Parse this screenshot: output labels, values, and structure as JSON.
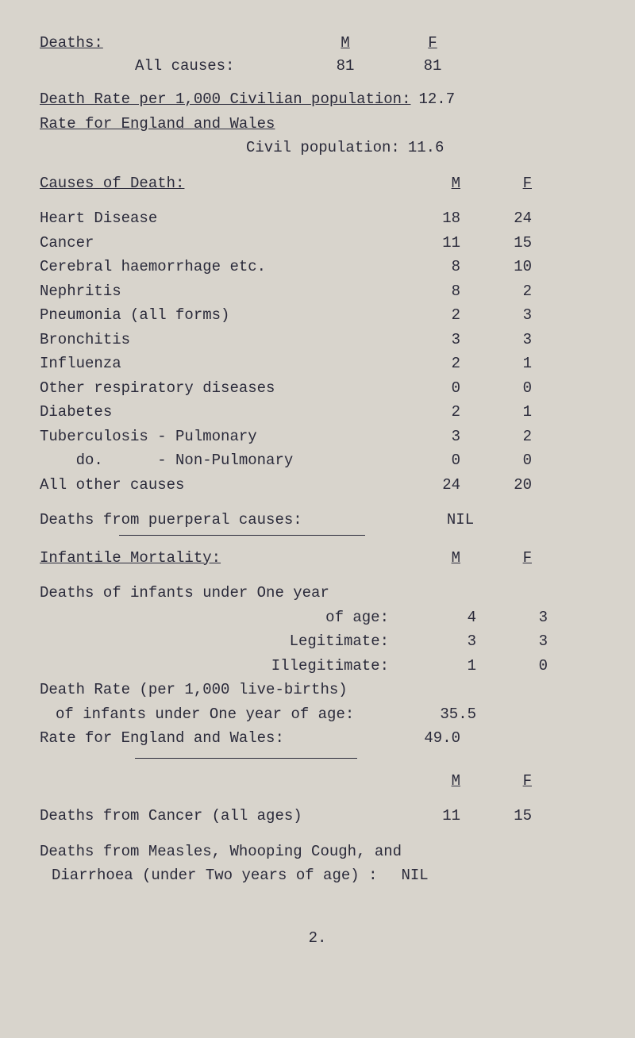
{
  "deaths_section": {
    "title": "Deaths:",
    "col_m": "M",
    "col_f": "F",
    "all_causes_label": "All causes:",
    "all_causes_m": "81",
    "all_causes_f": "81"
  },
  "death_rate": {
    "line1_label": "Death Rate per 1,000 Civilian population:",
    "line1_val": "12.7",
    "line2_label": "Rate for England and Wales",
    "line3_label": "Civil population:",
    "line3_val": "11.6"
  },
  "causes_of_death": {
    "title": "Causes of Death:",
    "col_m": "M",
    "col_f": "F",
    "rows": [
      {
        "label": "Heart Disease",
        "m": "18",
        "f": "24"
      },
      {
        "label": "Cancer",
        "m": "11",
        "f": "15"
      },
      {
        "label": "Cerebral haemorrhage etc.",
        "m": "8",
        "f": "10"
      },
      {
        "label": "Nephritis",
        "m": "8",
        "f": "2"
      },
      {
        "label": "Pneumonia (all forms)",
        "m": "2",
        "f": "3"
      },
      {
        "label": "Bronchitis",
        "m": "3",
        "f": "3"
      },
      {
        "label": "Influenza",
        "m": "2",
        "f": "1"
      },
      {
        "label": "Other respiratory diseases",
        "m": "0",
        "f": "0"
      },
      {
        "label": "Diabetes",
        "m": "2",
        "f": "1"
      },
      {
        "label": "Tuberculosis - Pulmonary",
        "m": "3",
        "f": "2"
      },
      {
        "label": "    do.      - Non-Pulmonary",
        "m": "0",
        "f": "0"
      },
      {
        "label": "All other causes",
        "m": "24",
        "f": "20"
      }
    ],
    "puerperal_label": "Deaths from puerperal causes:",
    "puerperal_val": "NIL"
  },
  "infantile": {
    "title": "Infantile Mortality:",
    "col_m": "M",
    "col_f": "F",
    "under_one_label": "Deaths of infants under One year",
    "of_age_label": "of age:",
    "of_age_m": "4",
    "of_age_f": "3",
    "legit_label": "Legitimate:",
    "legit_m": "3",
    "legit_f": "3",
    "illegit_label": "Illegitimate:",
    "illegit_m": "1",
    "illegit_f": "0",
    "death_rate_label": "Death Rate (per 1,000 live-births)",
    "infants_under_one_label": "of infants under One year of age:",
    "infants_under_one_val": "35.5",
    "rate_england_label": "Rate for England and Wales:",
    "rate_england_val": "49.0"
  },
  "cancer": {
    "col_m": "M",
    "col_f": "F",
    "label": "Deaths from Cancer (all ages)",
    "m": "11",
    "f": "15"
  },
  "measles": {
    "line1": "Deaths from Measles, Whooping Cough, and",
    "line2_label": "Diarrhoea (under Two years of age) :",
    "line2_val": "NIL"
  },
  "page_number": "2."
}
